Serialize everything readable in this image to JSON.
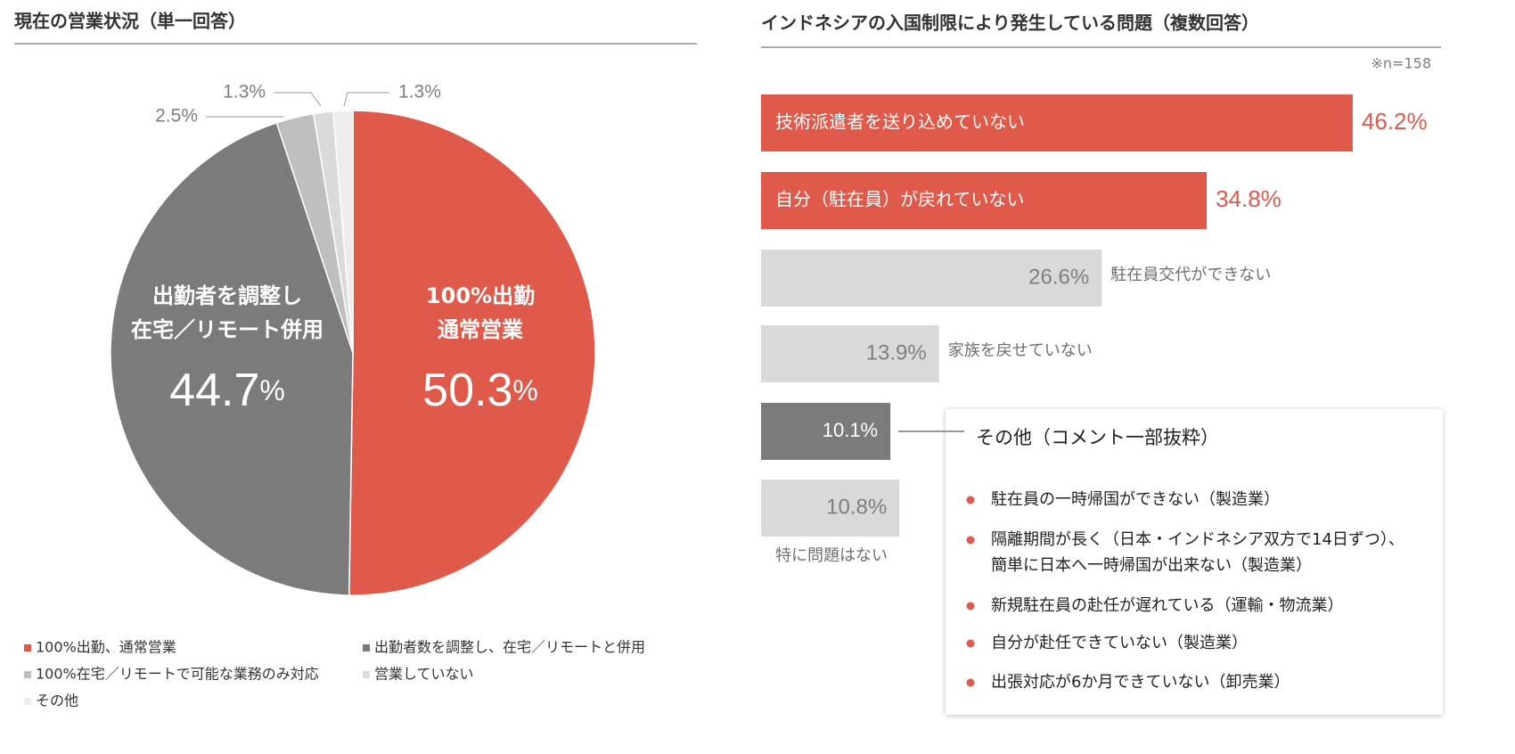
{
  "chart_data": [
    {
      "type": "pie",
      "title": "現在の営業状況（単一回答）",
      "categories": [
        "100%出勤、通常営業",
        "出勤者数を調整し、在宅／リモートと併用",
        "100%在宅／リモートで可能な業務のみ対応",
        "営業していない",
        "その他"
      ],
      "values": [
        50.3,
        44.7,
        2.5,
        1.3,
        1.3
      ],
      "value_labels": [
        "50.3%",
        "44.7%",
        "2.5%",
        "1.3%",
        "1.3%"
      ],
      "slice_labels": [
        [
          "100%出勤",
          "通常営業"
        ],
        [
          "出勤者を調整し",
          "在宅／リモート併用"
        ],
        null,
        null,
        null
      ],
      "colors": [
        "#e05a4b",
        "#7b7b7b",
        "#bfbfbf",
        "#dadada",
        "#ededed"
      ]
    },
    {
      "type": "hbar",
      "title": "インドネシアの入国制限により発生している問題（複数回答）",
      "note": "※n=158",
      "categories": [
        "技術派遣者を送り込めていない",
        "自分（駐在員）が戻れていない",
        "駐在員交代ができない",
        "家族を戻せていない",
        null,
        "特に問題はない"
      ],
      "values": [
        46.2,
        34.8,
        26.6,
        13.9,
        10.1,
        10.8
      ],
      "value_labels": [
        "46.2%",
        "34.8%",
        "26.6%",
        "13.9%",
        "10.1%",
        "10.8%"
      ],
      "colors": [
        "#e05a4b",
        "#e05a4b",
        "#d9d9d9",
        "#d9d9d9",
        "#7b7b7b",
        "#d9d9d9"
      ],
      "comment_box": {
        "title": "その他（コメント一部抜粋）",
        "items": [
          [
            "駐在員の一時帰国ができない（製造業）"
          ],
          [
            "隔離期間が長く（日本・インドネシア双方で14日ずつ）、",
            "簡単に日本へ一時帰国が出来ない（製造業）"
          ],
          [
            "新規駐在員の赴任が遅れている（運輸・物流業）"
          ],
          [
            "自分が赴任できていない（製造業）"
          ],
          [
            "出張対応が6か月できていない（卸売業）"
          ]
        ]
      }
    }
  ]
}
